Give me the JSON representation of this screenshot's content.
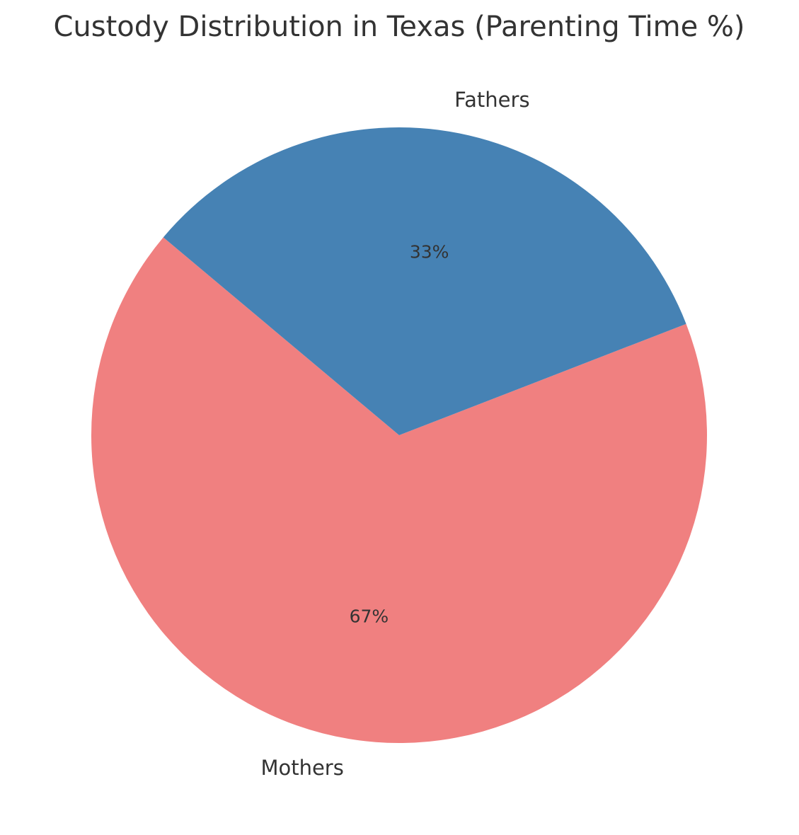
{
  "chart_data": {
    "type": "pie",
    "title": "Custody Distribution in Texas (Parenting Time %)",
    "categories": [
      "Mothers",
      "Fathers"
    ],
    "values": [
      67,
      33
    ],
    "value_labels": [
      "67%",
      "33%"
    ],
    "colors": [
      "#f08080",
      "#4682b4"
    ]
  }
}
